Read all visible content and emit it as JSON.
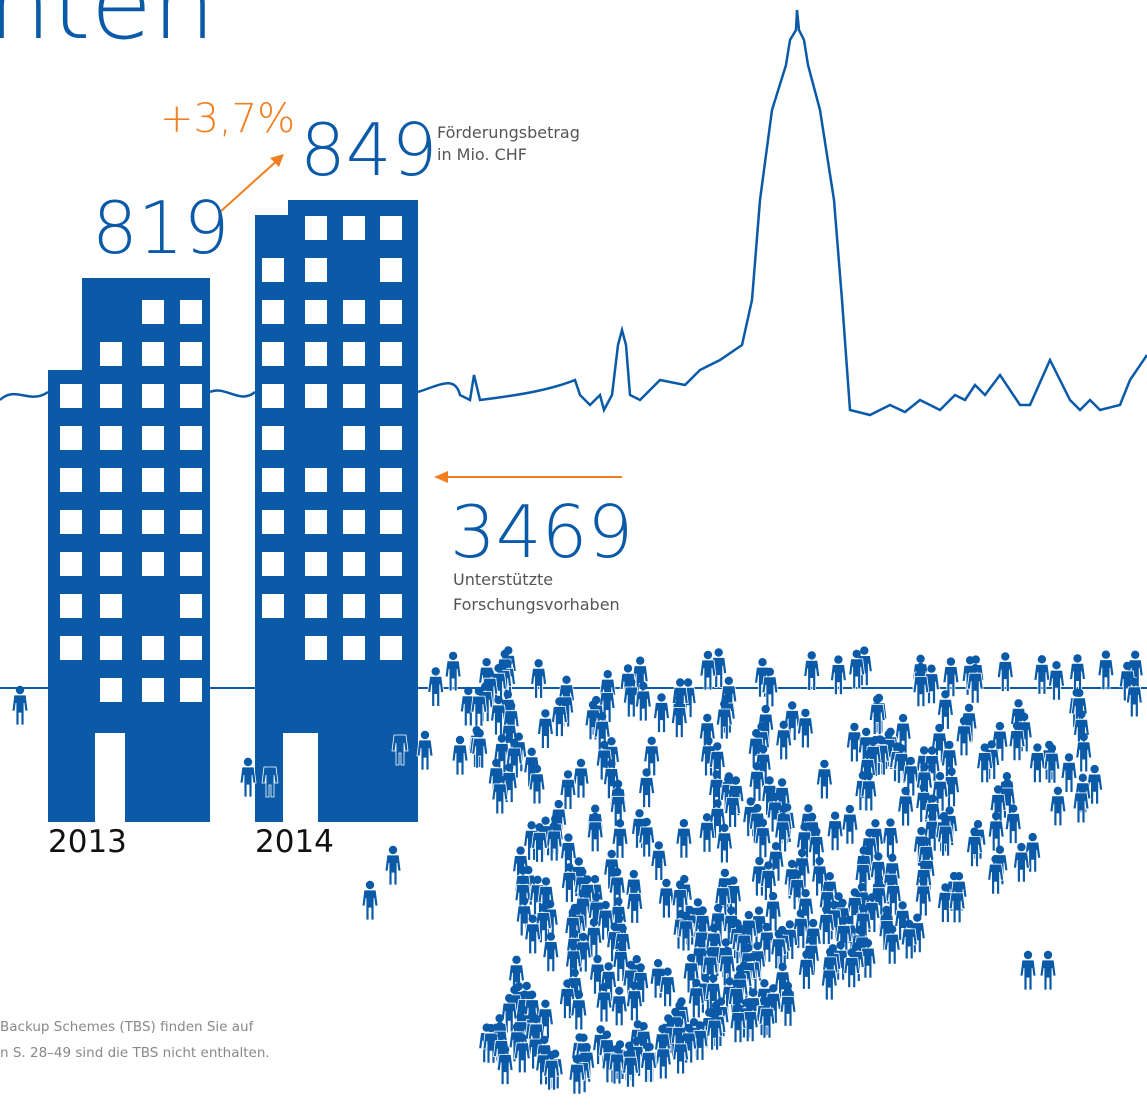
{
  "title_fragment": "nten",
  "funding": {
    "value_2013": 819,
    "value_2014": 849,
    "change": "+3,7%",
    "label_line1": "Förderungsbetrag",
    "label_line2": "in Mio. CHF"
  },
  "projects": {
    "value": 3469,
    "label_line1": "Unterstützte",
    "label_line2": "Forschungsvorhaben"
  },
  "years": [
    2013,
    2014
  ],
  "footnote": [
    "Backup Schemes (TBS) finden Sie auf",
    "n S. 28–49 sind die TBS nicht enthalten."
  ]
}
